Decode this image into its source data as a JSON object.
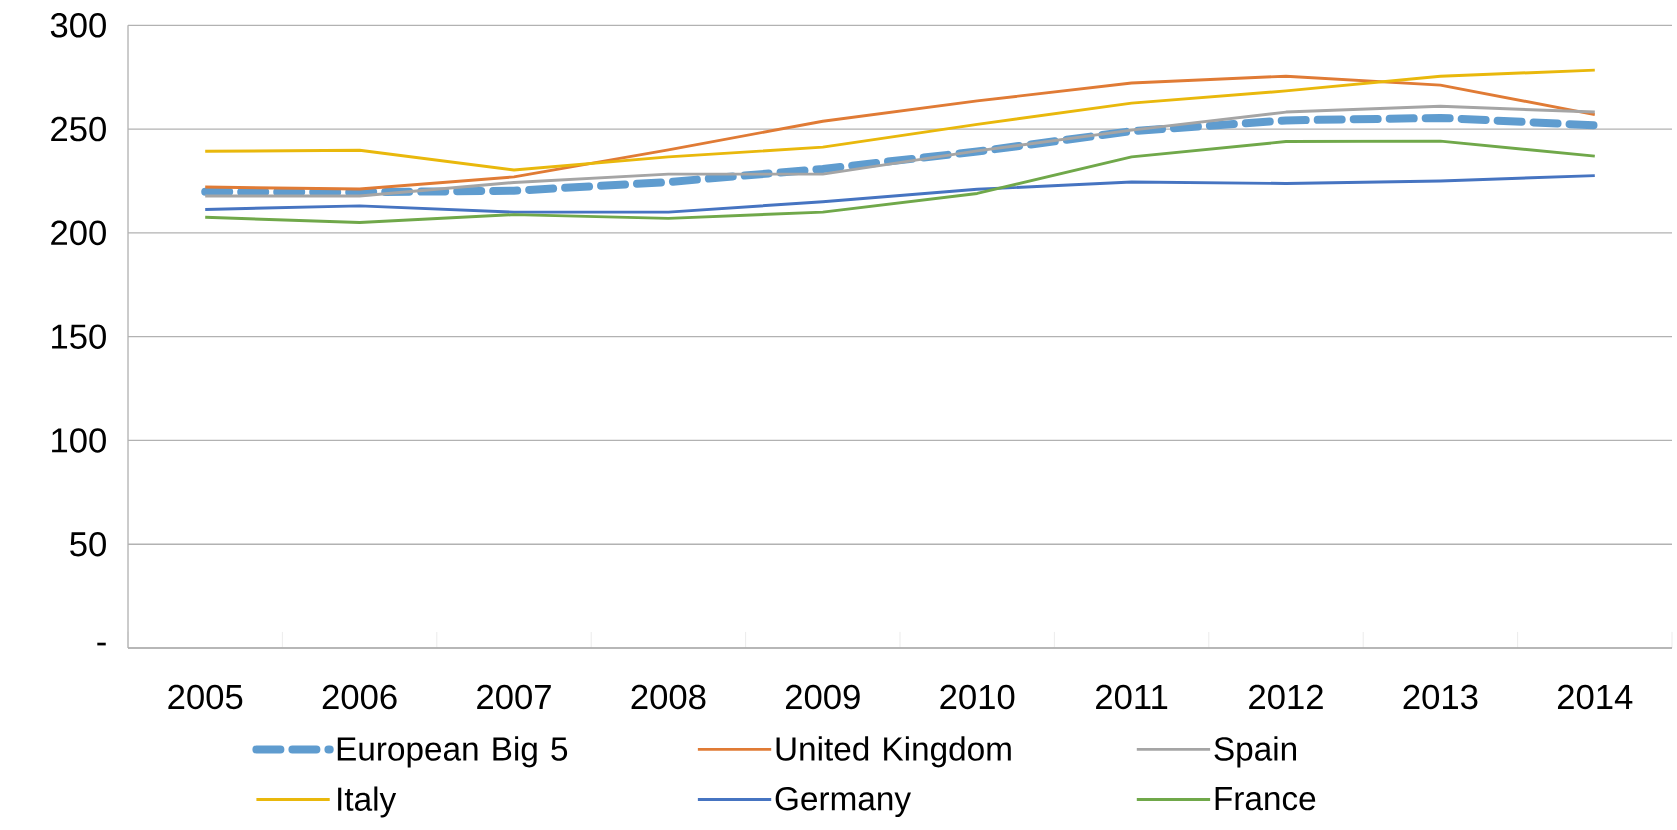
{
  "chart_data": {
    "type": "line",
    "categories": [
      "2005",
      "2006",
      "2007",
      "2008",
      "2009",
      "2010",
      "2011",
      "2012",
      "2013",
      "2014"
    ],
    "series": [
      {
        "name": "European Big 5",
        "color": "#5f9ccf",
        "line_style": "dashed",
        "values": [
          219.8,
          219.6,
          220.3,
          224.5,
          230.8,
          239.2,
          249,
          254.2,
          255.4,
          251.8
        ]
      },
      {
        "name": "United Kingdom",
        "color": "#e07b35",
        "values": [
          222.1,
          221.1,
          227,
          240,
          253.8,
          263.6,
          272.2,
          275.5,
          271.2,
          257
        ]
      },
      {
        "name": "Spain",
        "color": "#a5a5a5",
        "values": [
          217.8,
          217.8,
          224.3,
          228.3,
          228.3,
          239.5,
          249.5,
          258.2,
          261,
          258.2
        ]
      },
      {
        "name": "Italy",
        "color": "#e9b80c",
        "values": [
          239.3,
          239.8,
          230.3,
          236.6,
          241.3,
          252.3,
          262.5,
          268.4,
          275.5,
          278.4
        ]
      },
      {
        "name": "Germany",
        "color": "#4674c1",
        "values": [
          211.3,
          213,
          210,
          210,
          215,
          221,
          224.5,
          223.8,
          225,
          227.6
        ]
      },
      {
        "name": "France",
        "color": "#70a84a",
        "values": [
          207.5,
          205,
          208.8,
          207,
          210,
          219,
          236.6,
          244,
          244.2,
          237
        ]
      }
    ],
    "ylim": [
      0,
      300
    ],
    "yticks": [
      {
        "value": 0,
        "label": "-"
      },
      50,
      100,
      150,
      200,
      250,
      300
    ],
    "grid": "y",
    "legend": "bottom"
  }
}
